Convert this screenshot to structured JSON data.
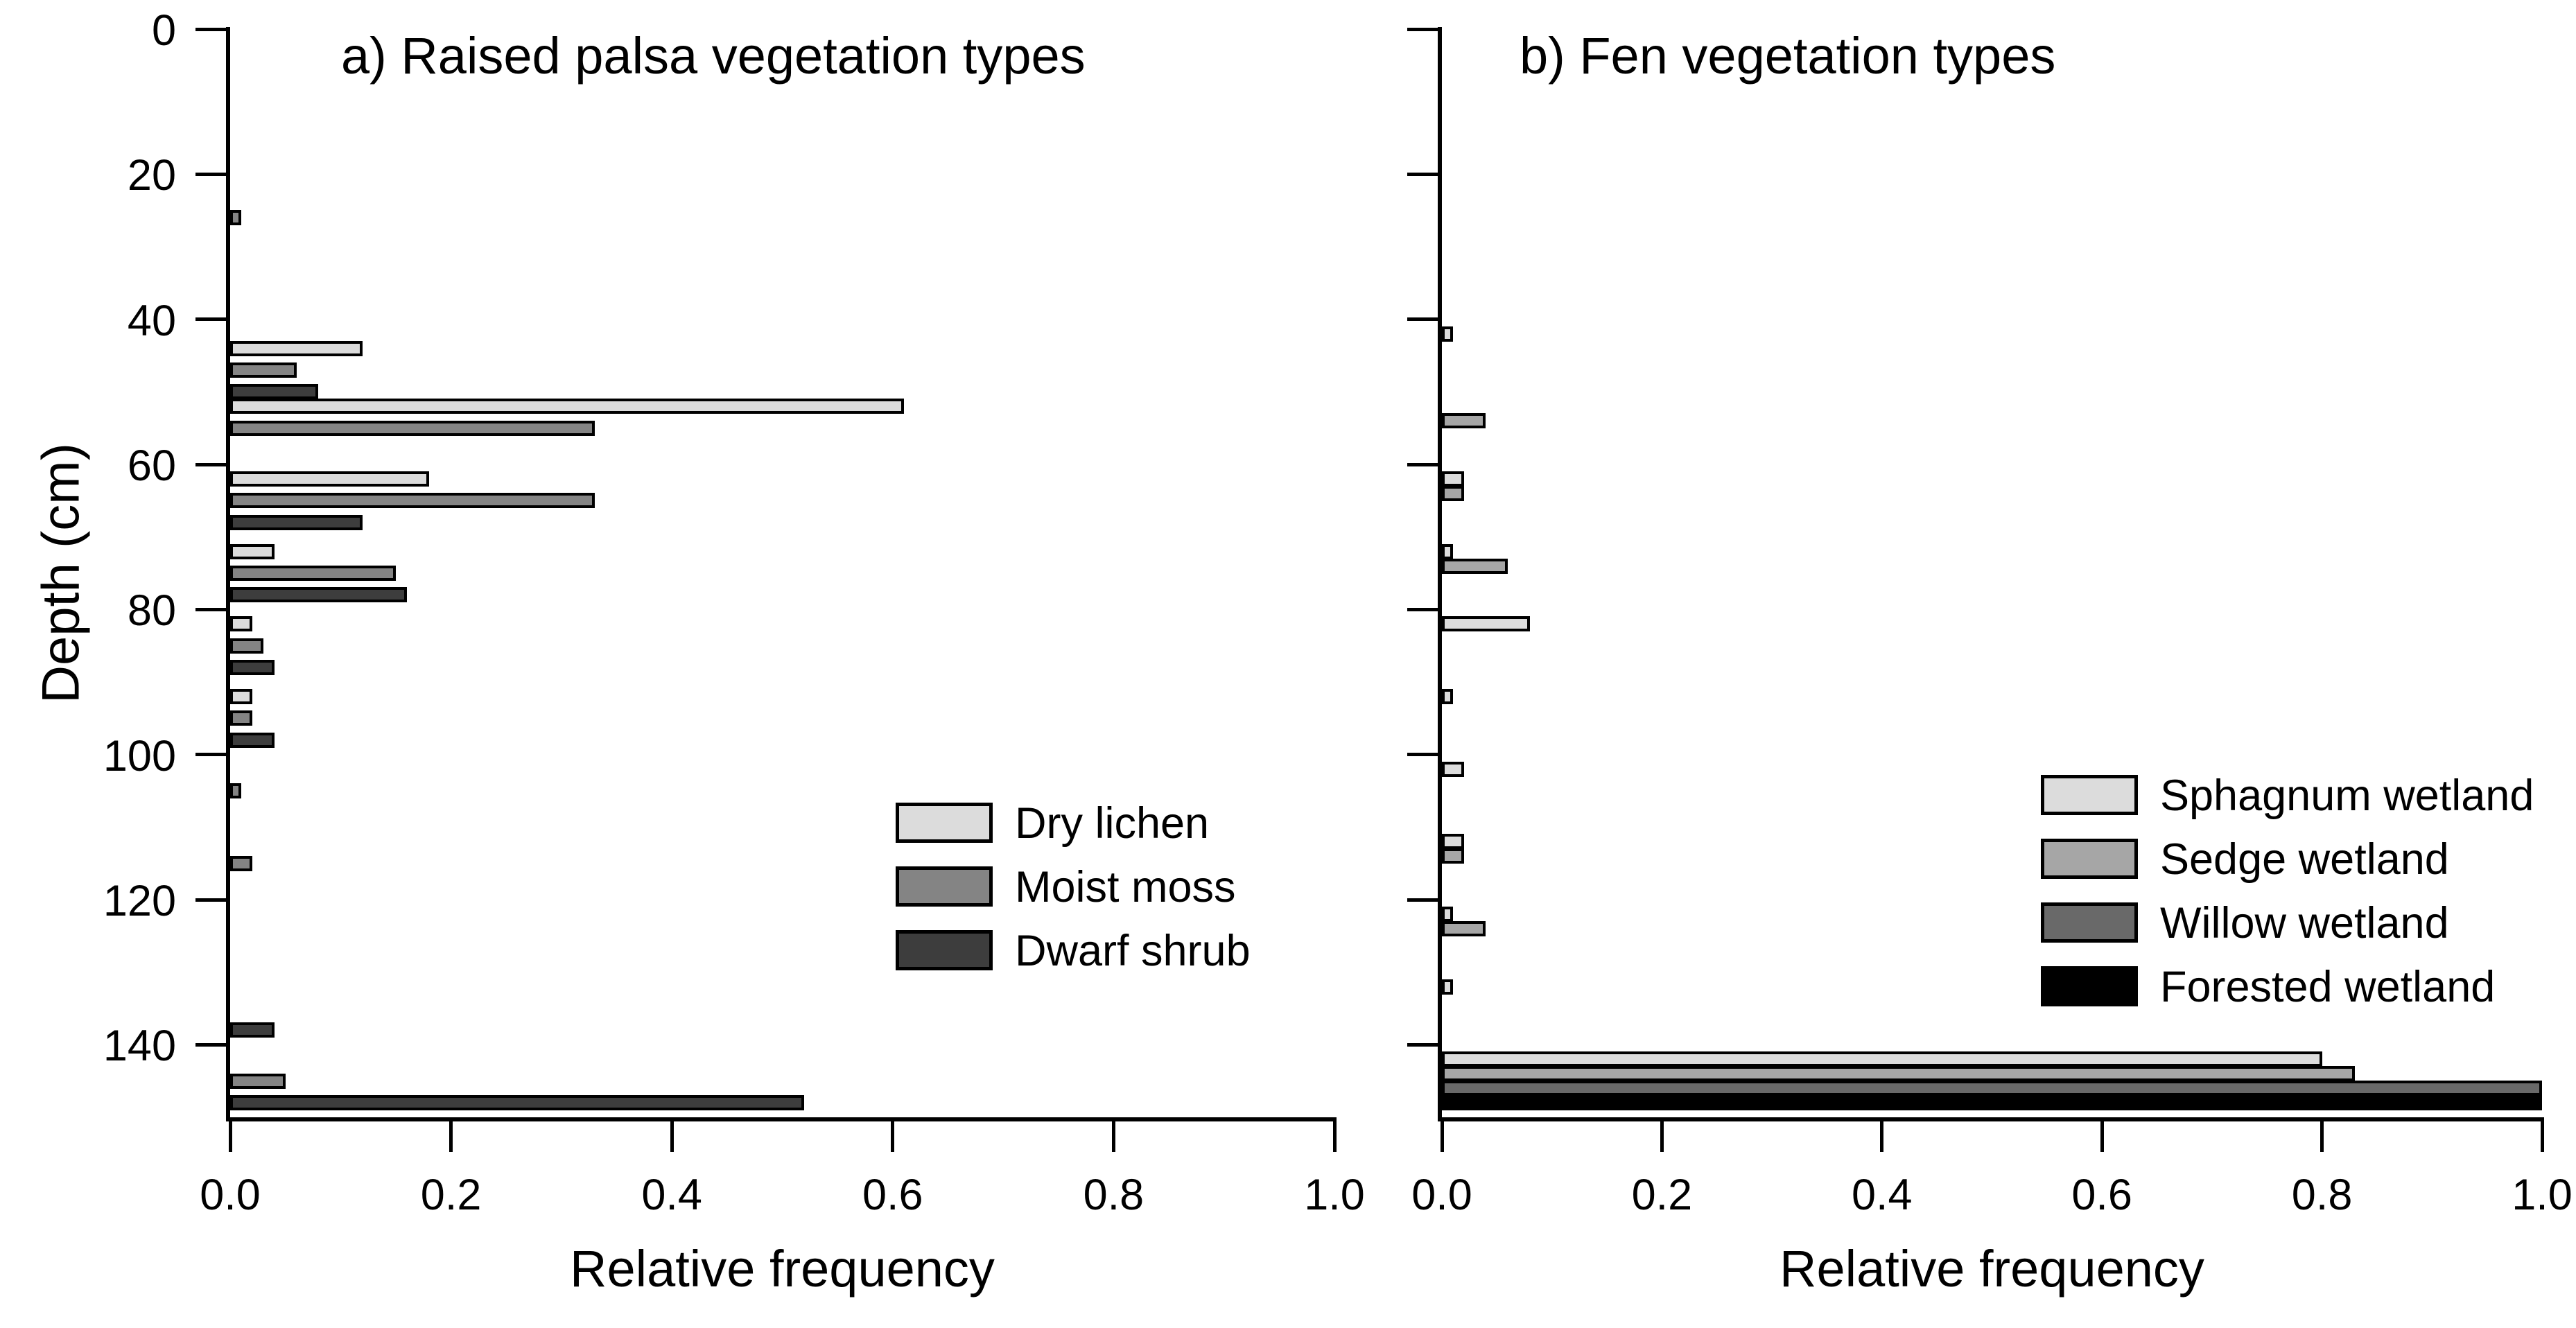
{
  "figure": {
    "background": "#ffffff",
    "axis_color": "#000000",
    "text_color": "#000000"
  },
  "chart_data": [
    {
      "type": "bar",
      "orientation": "horizontal",
      "panel_label": "a",
      "title": "a) Raised palsa vegetation types",
      "xlabel": "Relative frequency",
      "ylabel": "Depth (cm)",
      "xlim": [
        0.0,
        1.0
      ],
      "ylim": [
        0,
        150
      ],
      "xticks": [
        "0.0",
        "0.2",
        "0.4",
        "0.6",
        "0.8",
        "1.0"
      ],
      "yticks": [
        "0",
        "20",
        "40",
        "60",
        "80",
        "100",
        "120",
        "140"
      ],
      "grid": false,
      "legend_position": "right-middle",
      "series": [
        {
          "name": "Dry lichen",
          "color": "#dcdcdc"
        },
        {
          "name": "Moist moss",
          "color": "#848484"
        },
        {
          "name": "Dwarf shrub",
          "color": "#3d3d3d"
        }
      ],
      "bars": [
        {
          "depth_cm": 26,
          "series": "Moist moss",
          "value": 0.01
        },
        {
          "depth_cm": 44,
          "series": "Dry lichen",
          "value": 0.12
        },
        {
          "depth_cm": 47,
          "series": "Moist moss",
          "value": 0.06
        },
        {
          "depth_cm": 50,
          "series": "Dwarf shrub",
          "value": 0.08
        },
        {
          "depth_cm": 52,
          "series": "Dry lichen",
          "value": 0.61
        },
        {
          "depth_cm": 55,
          "series": "Moist moss",
          "value": 0.33
        },
        {
          "depth_cm": 62,
          "series": "Dry lichen",
          "value": 0.18
        },
        {
          "depth_cm": 65,
          "series": "Moist moss",
          "value": 0.33
        },
        {
          "depth_cm": 68,
          "series": "Dwarf shrub",
          "value": 0.12
        },
        {
          "depth_cm": 72,
          "series": "Dry lichen",
          "value": 0.04
        },
        {
          "depth_cm": 75,
          "series": "Moist moss",
          "value": 0.15
        },
        {
          "depth_cm": 78,
          "series": "Dwarf shrub",
          "value": 0.16
        },
        {
          "depth_cm": 82,
          "series": "Dry lichen",
          "value": 0.02
        },
        {
          "depth_cm": 85,
          "series": "Moist moss",
          "value": 0.03
        },
        {
          "depth_cm": 88,
          "series": "Dwarf shrub",
          "value": 0.04
        },
        {
          "depth_cm": 92,
          "series": "Dry lichen",
          "value": 0.02
        },
        {
          "depth_cm": 95,
          "series": "Moist moss",
          "value": 0.02
        },
        {
          "depth_cm": 98,
          "series": "Dwarf shrub",
          "value": 0.04
        },
        {
          "depth_cm": 105,
          "series": "Moist moss",
          "value": 0.01
        },
        {
          "depth_cm": 115,
          "series": "Moist moss",
          "value": 0.02
        },
        {
          "depth_cm": 138,
          "series": "Dwarf shrub",
          "value": 0.04
        },
        {
          "depth_cm": 145,
          "series": "Moist moss",
          "value": 0.05
        },
        {
          "depth_cm": 148,
          "series": "Dwarf shrub",
          "value": 0.52
        }
      ]
    },
    {
      "type": "bar",
      "orientation": "horizontal",
      "panel_label": "b",
      "title": "b) Fen vegetation types",
      "xlabel": "Relative frequency",
      "ylabel": "",
      "xlim": [
        0.0,
        1.0
      ],
      "ylim": [
        0,
        150
      ],
      "xticks": [
        "0.0",
        "0.2",
        "0.4",
        "0.6",
        "0.8",
        "1.0"
      ],
      "yticks": [
        "0",
        "20",
        "40",
        "60",
        "80",
        "100",
        "120",
        "140"
      ],
      "grid": false,
      "legend_position": "right-middle",
      "series": [
        {
          "name": "Sphagnum wetland",
          "color": "#dcdcdc"
        },
        {
          "name": "Sedge wetland",
          "color": "#a6a6a6"
        },
        {
          "name": "Willow wetland",
          "color": "#696969"
        },
        {
          "name": "Forested wetland",
          "color": "#000000"
        }
      ],
      "bars": [
        {
          "depth_cm": 42,
          "series": "Sphagnum wetland",
          "value": 0.01
        },
        {
          "depth_cm": 54,
          "series": "Sedge wetland",
          "value": 0.04
        },
        {
          "depth_cm": 62,
          "series": "Sphagnum wetland",
          "value": 0.02
        },
        {
          "depth_cm": 64,
          "series": "Sedge wetland",
          "value": 0.02
        },
        {
          "depth_cm": 72,
          "series": "Sphagnum wetland",
          "value": 0.01
        },
        {
          "depth_cm": 74,
          "series": "Sedge wetland",
          "value": 0.06
        },
        {
          "depth_cm": 82,
          "series": "Sphagnum wetland",
          "value": 0.08
        },
        {
          "depth_cm": 92,
          "series": "Sphagnum wetland",
          "value": 0.01
        },
        {
          "depth_cm": 102,
          "series": "Sphagnum wetland",
          "value": 0.02
        },
        {
          "depth_cm": 112,
          "series": "Sphagnum wetland",
          "value": 0.02
        },
        {
          "depth_cm": 114,
          "series": "Sedge wetland",
          "value": 0.02
        },
        {
          "depth_cm": 122,
          "series": "Sphagnum wetland",
          "value": 0.01
        },
        {
          "depth_cm": 124,
          "series": "Sedge wetland",
          "value": 0.04
        },
        {
          "depth_cm": 132,
          "series": "Sphagnum wetland",
          "value": 0.01
        },
        {
          "depth_cm": 142,
          "series": "Sphagnum wetland",
          "value": 0.8
        },
        {
          "depth_cm": 144,
          "series": "Sedge wetland",
          "value": 0.83
        },
        {
          "depth_cm": 146,
          "series": "Willow wetland",
          "value": 1.0
        },
        {
          "depth_cm": 148,
          "series": "Forested wetland",
          "value": 1.0
        }
      ]
    }
  ]
}
